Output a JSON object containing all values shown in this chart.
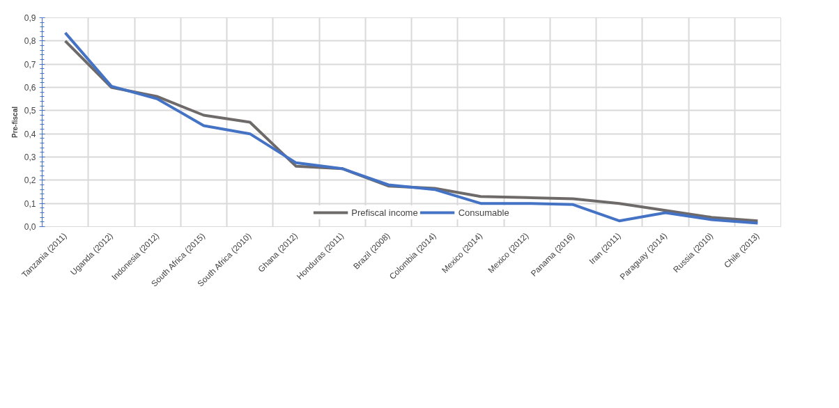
{
  "chart_data": {
    "type": "line",
    "ylabel": "Pre-fiscal",
    "categories": [
      "Tanzania (2011)",
      "Uganda (2012)",
      "Indonesia (2012)",
      "South Africa (2015)",
      "South Africa (2010)",
      "Ghana (2012)",
      "Honduras (2011)",
      "Brazil (2008)",
      "Colombia (2014)",
      "Mexico (2014)",
      "Mexico (2012)",
      "Panama (2016)",
      "Iran (2011)",
      "Paraguay (2014)",
      "Russia (2010)",
      "Chile (2013)"
    ],
    "series": [
      {
        "name": "Prefiscal income",
        "color": "#6e6a6a",
        "values": [
          0.8,
          0.6,
          0.56,
          0.48,
          0.45,
          0.26,
          0.25,
          0.175,
          0.165,
          0.13,
          0.125,
          0.12,
          0.1,
          0.07,
          0.04,
          0.025
        ]
      },
      {
        "name": "Consumable",
        "color": "#4472c4",
        "values": [
          0.835,
          0.605,
          0.55,
          0.435,
          0.4,
          0.275,
          0.25,
          0.18,
          0.16,
          0.1,
          0.1,
          0.095,
          0.025,
          0.06,
          0.03,
          0.015
        ]
      }
    ],
    "ylim": [
      0,
      0.9
    ],
    "yticks": [
      {
        "value": 0,
        "label": "0,0"
      },
      {
        "value": 0.1,
        "label": "0,1"
      },
      {
        "value": 0.2,
        "label": "0,2"
      },
      {
        "value": 0.3,
        "label": "0,3"
      },
      {
        "value": 0.4,
        "label": "0,4"
      },
      {
        "value": 0.5,
        "label": "0,5"
      },
      {
        "value": 0.6,
        "label": "0,6"
      },
      {
        "value": 0.7,
        "label": "0,7"
      },
      {
        "value": 0.8,
        "label": "0,8"
      },
      {
        "value": 0.9,
        "label": "0,9"
      }
    ],
    "grid": true,
    "legend": "bottom",
    "line_style": "solid",
    "marker": "none"
  }
}
